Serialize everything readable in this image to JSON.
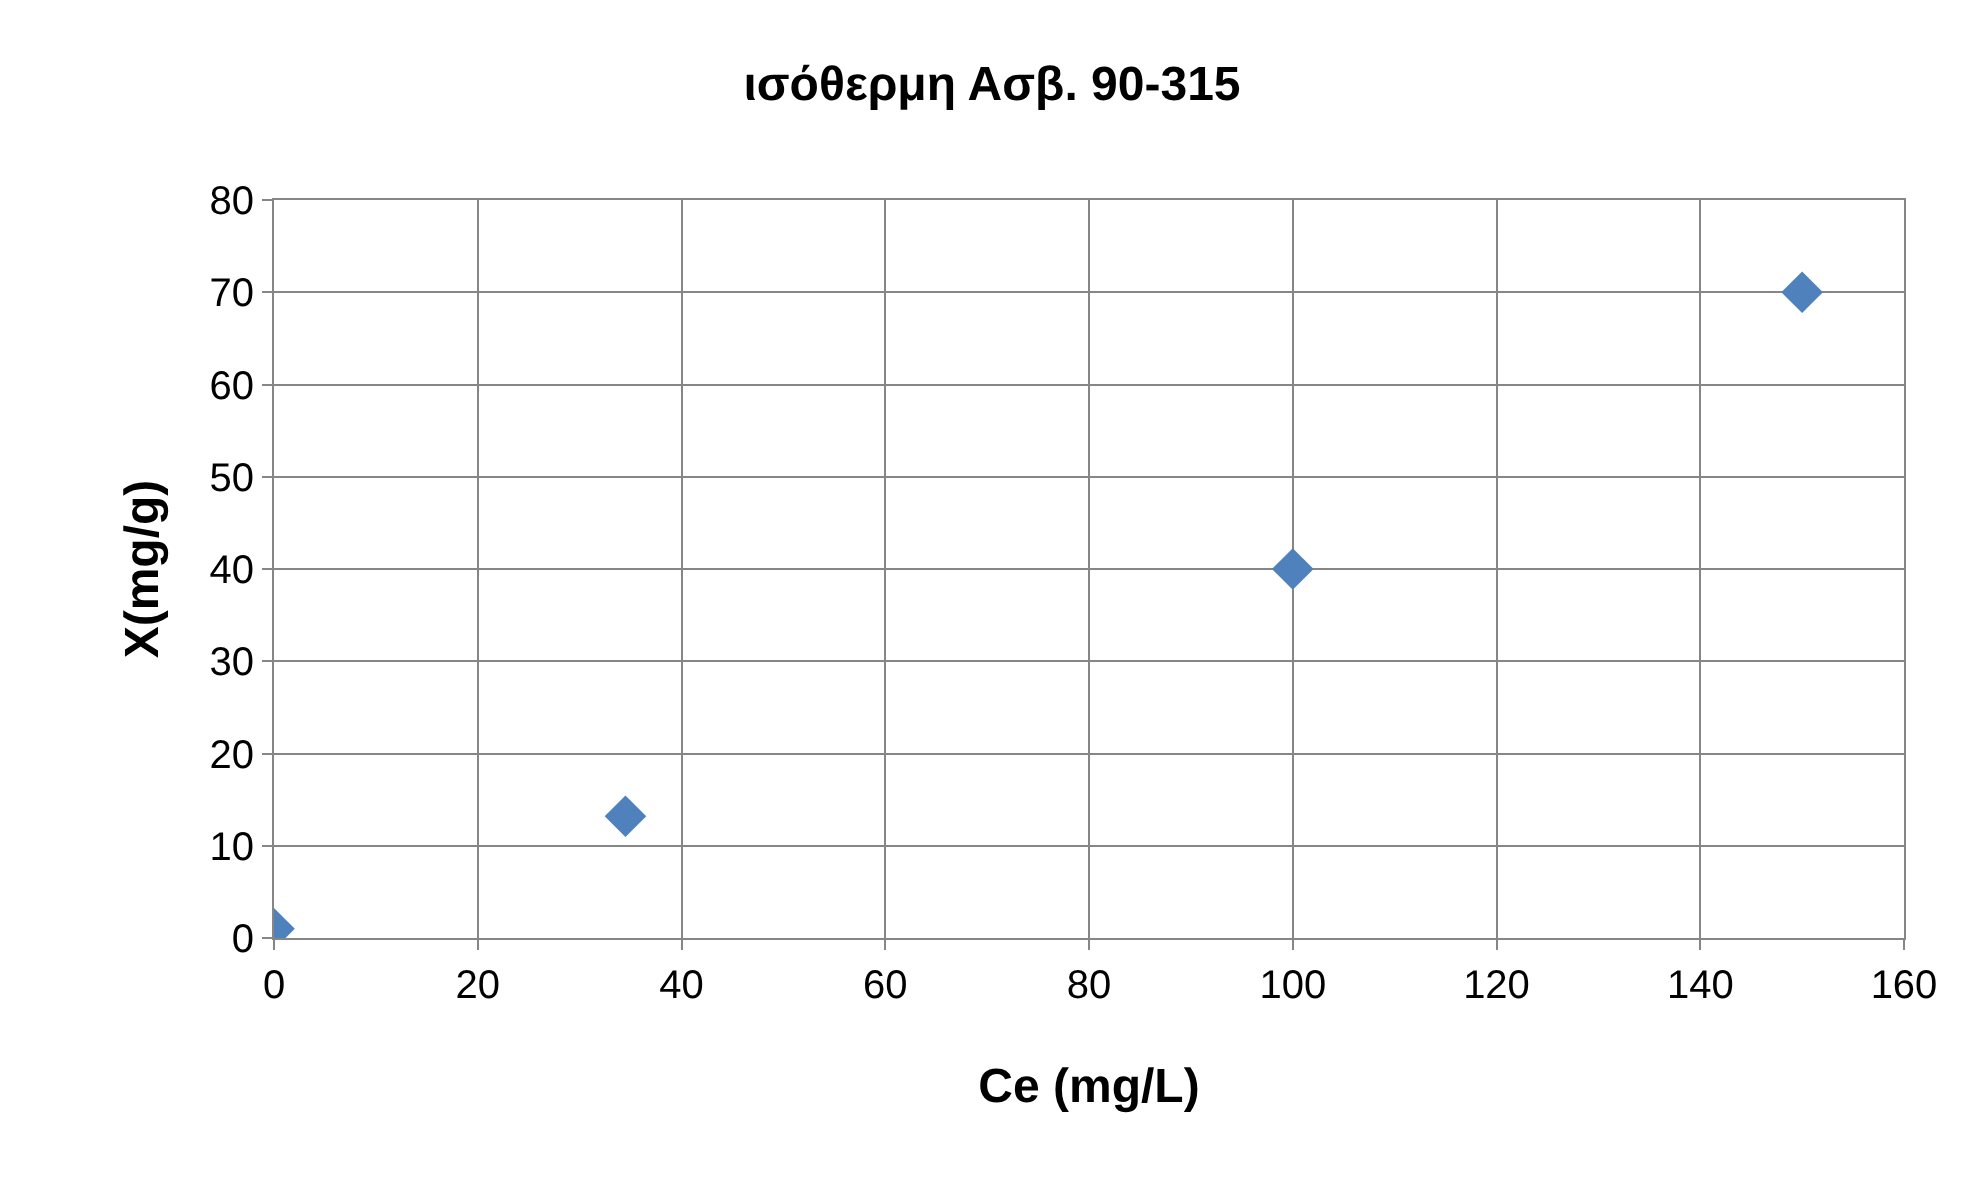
{
  "chart_data": {
    "type": "scatter",
    "title": "ισόθερμη Ασβ. 90-315",
    "xlabel": "Ce (mg/L)",
    "ylabel": "X(mg/g)",
    "x": [
      0,
      34.5,
      100,
      150
    ],
    "values": [
      1,
      13.2,
      40,
      70
    ],
    "color": "#4f81bd",
    "marker": "diamond",
    "grid": true,
    "xlim": [
      0,
      160
    ],
    "xticks": [
      0,
      20,
      40,
      60,
      80,
      100,
      120,
      140,
      160
    ],
    "ylim": [
      0,
      80
    ],
    "yticks": [
      0,
      10,
      20,
      30,
      40,
      50,
      60,
      70,
      80
    ]
  }
}
